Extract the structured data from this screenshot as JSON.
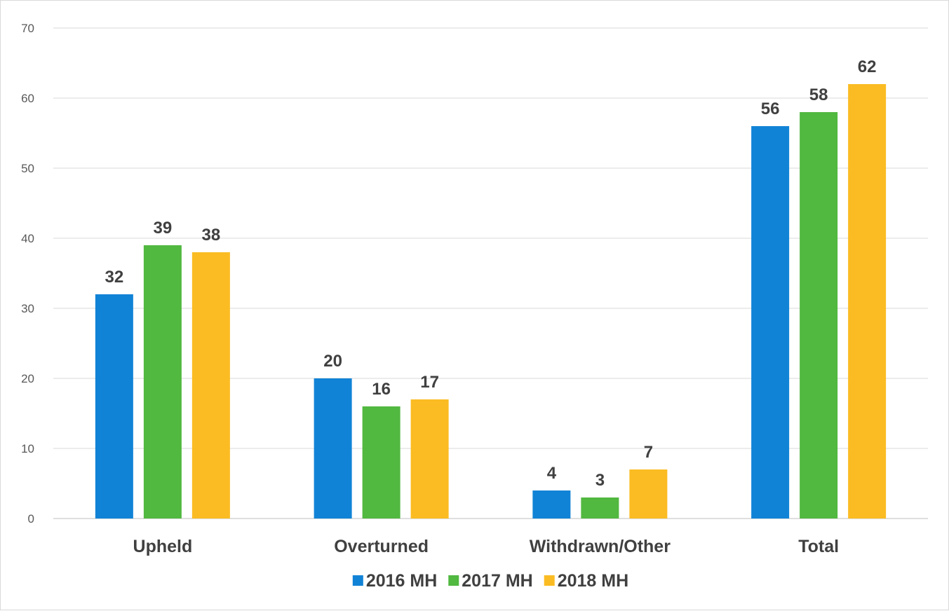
{
  "chart_data": {
    "type": "bar",
    "title": "",
    "xlabel": "",
    "ylabel": "",
    "categories": [
      "Upheld",
      "Overturned",
      "Withdrawn/Other",
      "Total"
    ],
    "series": [
      {
        "name": "2016 MH",
        "color": "#1183d6",
        "values": [
          32,
          20,
          4,
          56
        ]
      },
      {
        "name": "2017 MH",
        "color": "#51b840",
        "values": [
          39,
          16,
          3,
          58
        ]
      },
      {
        "name": "2018 MH",
        "color": "#fbbc23",
        "values": [
          38,
          17,
          7,
          62
        ]
      }
    ],
    "ylim": [
      0,
      70
    ],
    "yticks": [
      "0",
      "10",
      "20",
      "30",
      "40",
      "50",
      "60",
      "70"
    ],
    "grid": true,
    "legend": "bottom",
    "data_labels": true
  }
}
